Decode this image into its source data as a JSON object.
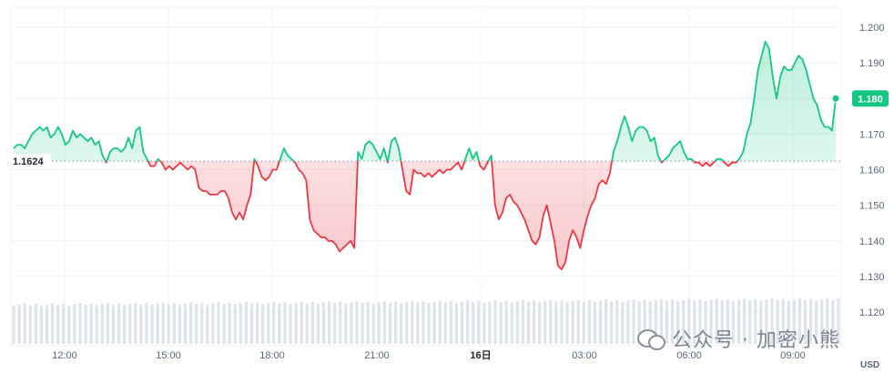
{
  "chart_data": {
    "type": "area",
    "title": "",
    "currency_unit": "USD",
    "x_labels": [
      "12:00",
      "15:00",
      "18:00",
      "21:00",
      "16日",
      "03:00",
      "06:00",
      "09:00"
    ],
    "bold_x_label": "16日",
    "y_ticks": [
      "1.120",
      "1.130",
      "1.140",
      "1.150",
      "1.160",
      "1.170",
      "1.180",
      "1.190",
      "1.200"
    ],
    "ylim": [
      1.117,
      1.203
    ],
    "baseline": 1.1624,
    "baseline_label": "1.1624",
    "current_price": 1.18,
    "current_price_label": "1.180",
    "above_color": "#16c784",
    "below_color": "#ea3943",
    "volume_color": "#dfe3ea",
    "grid": true,
    "prices": [
      1.166,
      1.167,
      1.167,
      1.166,
      1.168,
      1.17,
      1.171,
      1.172,
      1.171,
      1.172,
      1.169,
      1.17,
      1.172,
      1.17,
      1.167,
      1.168,
      1.171,
      1.169,
      1.17,
      1.169,
      1.168,
      1.169,
      1.167,
      1.168,
      1.164,
      1.162,
      1.165,
      1.166,
      1.166,
      1.165,
      1.166,
      1.169,
      1.166,
      1.171,
      1.172,
      1.165,
      1.163,
      1.161,
      1.161,
      1.163,
      1.162,
      1.16,
      1.161,
      1.16,
      1.161,
      1.162,
      1.161,
      1.16,
      1.161,
      1.16,
      1.155,
      1.154,
      1.154,
      1.153,
      1.153,
      1.153,
      1.154,
      1.154,
      1.152,
      1.148,
      1.146,
      1.148,
      1.146,
      1.15,
      1.153,
      1.163,
      1.161,
      1.158,
      1.157,
      1.158,
      1.16,
      1.16,
      1.163,
      1.166,
      1.164,
      1.163,
      1.162,
      1.16,
      1.159,
      1.157,
      1.146,
      1.143,
      1.142,
      1.141,
      1.141,
      1.14,
      1.14,
      1.139,
      1.137,
      1.138,
      1.139,
      1.14,
      1.138,
      1.165,
      1.163,
      1.167,
      1.168,
      1.167,
      1.165,
      1.163,
      1.166,
      1.162,
      1.168,
      1.169,
      1.166,
      1.16,
      1.154,
      1.153,
      1.16,
      1.159,
      1.159,
      1.158,
      1.159,
      1.158,
      1.159,
      1.16,
      1.159,
      1.16,
      1.16,
      1.161,
      1.162,
      1.16,
      1.163,
      1.166,
      1.163,
      1.165,
      1.161,
      1.16,
      1.162,
      1.164,
      1.15,
      1.146,
      1.148,
      1.152,
      1.153,
      1.151,
      1.15,
      1.148,
      1.146,
      1.143,
      1.14,
      1.139,
      1.141,
      1.147,
      1.15,
      1.145,
      1.14,
      1.133,
      1.132,
      1.134,
      1.14,
      1.143,
      1.141,
      1.138,
      1.143,
      1.147,
      1.15,
      1.152,
      1.156,
      1.157,
      1.156,
      1.159,
      1.165,
      1.168,
      1.172,
      1.175,
      1.172,
      1.168,
      1.171,
      1.172,
      1.172,
      1.171,
      1.168,
      1.169,
      1.164,
      1.162,
      1.163,
      1.164,
      1.166,
      1.167,
      1.168,
      1.165,
      1.163,
      1.163,
      1.162,
      1.162,
      1.161,
      1.162,
      1.161,
      1.162,
      1.163,
      1.163,
      1.162,
      1.161,
      1.162,
      1.162,
      1.163,
      1.165,
      1.17,
      1.173,
      1.18,
      1.188,
      1.192,
      1.196,
      1.194,
      1.186,
      1.18,
      1.186,
      1.189,
      1.188,
      1.188,
      1.19,
      1.192,
      1.191,
      1.188,
      1.184,
      1.18,
      1.178,
      1.174,
      1.172,
      1.172,
      1.171,
      1.18
    ]
  },
  "watermark": {
    "text": "公众号 · 加密小熊",
    "icon": "wechat-icon"
  }
}
